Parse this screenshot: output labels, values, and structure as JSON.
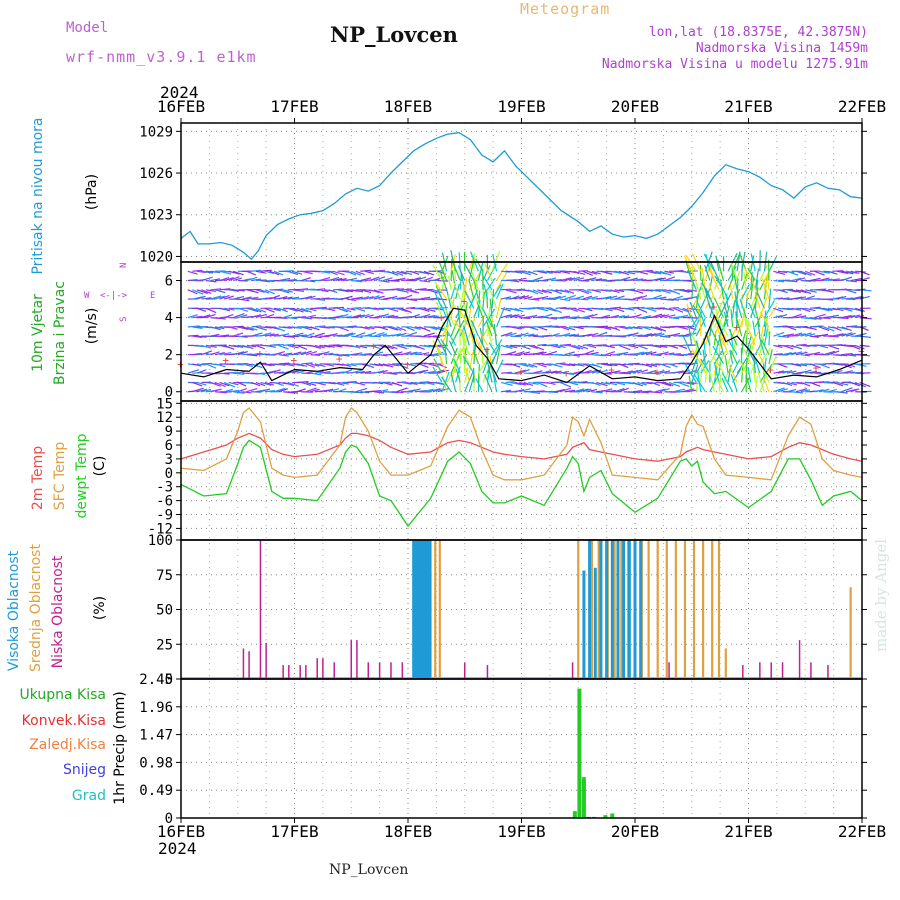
{
  "header": {
    "model_label": "Model",
    "model_version": "wrf-nmm_v3.9.1 e1km",
    "station": "NP_Lovcen",
    "product": "Meteogram",
    "coords": "lon,lat (18.8375E, 42.3875N)",
    "elevation": "Nadmorska Visina 1459m",
    "model_elevation": "Nadmorska Visina u modelu 1275.91m"
  },
  "footer": {
    "station": "NP_Lovcen",
    "credit": "made by Angel"
  },
  "colors": {
    "pressure": "#1e9bd7",
    "wind_speed_label": "#22aa22",
    "wind_unit": "#b040d0",
    "t2m": "#e85050",
    "sfc": "#e0a040",
    "dew": "#22cc22",
    "cloud_high": "#1e9bd7",
    "cloud_mid": "#e0a040",
    "cloud_low": "#c02090",
    "precip_total": "#22cc22",
    "precip_conv": "#e83030",
    "precip_frz": "#f08040",
    "snow": "#4040e0",
    "hail": "#20c0c0",
    "wind_line": "#000000",
    "wind_gust_marker": "#e84040"
  },
  "time_axis": {
    "year": "2024",
    "labels": [
      "16FEB",
      "17FEB",
      "18FEB",
      "19FEB",
      "20FEB",
      "21FEB",
      "22FEB"
    ],
    "days_span": 6
  },
  "panels": {
    "pressure": {
      "label": "Pritisak na nivou mora",
      "unit": "(hPa)"
    },
    "wind": {
      "label1": "10m Vjetar",
      "label2": "Brzina i Pravac",
      "unit": "(m/s)",
      "compass_n": "N",
      "compass_w": "W",
      "compass_e": "E",
      "compass_s": "S",
      "compass_arrows": "<-|->"
    },
    "temp": {
      "label1": "2m Temp",
      "label2": "SFC Temp",
      "label3": "dewpt Temp",
      "unit": "(C)"
    },
    "cloud": {
      "label1": "Visoka Oblacnost",
      "label2": "Srednja Oblacnost",
      "label3": "Niska Oblacnost",
      "unit": "(%)"
    },
    "precip": {
      "unit": "1hr Precip (mm)",
      "legend": [
        "Ukupna Kisa",
        "Konvek.Kisa",
        "Zaledj.Kisa",
        "Snijeg",
        "Grad"
      ]
    }
  },
  "chart_data": [
    {
      "type": "line",
      "title": "Pritisak na nivou mora",
      "ylabel": "(hPa)",
      "ylim": [
        1019.6,
        1029.6
      ],
      "yticks": [
        1020,
        1023,
        1026,
        1029
      ],
      "grid": true,
      "series": [
        {
          "x": [
            0,
            0.08,
            0.15,
            0.25,
            0.35,
            0.45,
            0.55,
            0.62,
            0.68,
            0.75,
            0.85,
            0.95,
            1.05,
            1.15,
            1.25,
            1.35,
            1.45,
            1.55,
            1.65,
            1.75,
            1.85,
            1.95,
            2.05,
            2.15,
            2.25,
            2.35,
            2.45,
            2.55,
            2.65,
            2.75,
            2.85,
            2.95,
            3.05,
            3.2,
            3.35,
            3.5,
            3.6,
            3.7,
            3.8,
            3.9,
            4.0,
            4.1,
            4.2,
            4.3,
            4.4,
            4.5,
            4.6,
            4.7,
            4.8,
            4.9,
            5.0,
            5.1,
            5.2,
            5.3,
            5.4,
            5.5,
            5.6,
            5.7,
            5.8,
            5.9,
            6.0
          ],
          "y": [
            1021.3,
            1021.8,
            1020.9,
            1020.9,
            1021.0,
            1020.8,
            1020.3,
            1019.8,
            1020.4,
            1021.5,
            1022.3,
            1022.7,
            1023.0,
            1023.1,
            1023.3,
            1023.8,
            1024.5,
            1024.9,
            1024.7,
            1025.1,
            1026.0,
            1026.8,
            1027.6,
            1028.1,
            1028.5,
            1028.8,
            1028.9,
            1028.4,
            1027.3,
            1026.8,
            1027.6,
            1026.5,
            1025.7,
            1024.5,
            1023.3,
            1022.5,
            1021.8,
            1022.2,
            1021.6,
            1021.4,
            1021.5,
            1021.3,
            1021.6,
            1022.2,
            1022.8,
            1023.6,
            1024.6,
            1025.8,
            1026.6,
            1026.3,
            1026.1,
            1025.7,
            1025.1,
            1024.8,
            1024.2,
            1025.0,
            1025.3,
            1024.9,
            1024.8,
            1024.3,
            1024.2
          ]
        }
      ]
    },
    {
      "type": "line",
      "title": "10m Vjetar Brzina i Pravac",
      "ylabel": "(m/s)",
      "ylim": [
        -0.5,
        7.0
      ],
      "yticks": [
        0,
        2,
        4,
        6
      ],
      "grid": true,
      "series": [
        {
          "name": "Brzina",
          "x": [
            0,
            0.2,
            0.4,
            0.6,
            0.7,
            0.8,
            1.0,
            1.2,
            1.4,
            1.6,
            1.7,
            1.8,
            2.0,
            2.2,
            2.3,
            2.4,
            2.5,
            2.6,
            2.7,
            2.8,
            3.0,
            3.2,
            3.4,
            3.6,
            3.8,
            4.0,
            4.2,
            4.4,
            4.5,
            4.6,
            4.7,
            4.8,
            4.9,
            5.0,
            5.2,
            5.4,
            5.6,
            5.8,
            6.0
          ],
          "y": [
            1.0,
            0.8,
            1.2,
            1.1,
            1.6,
            0.6,
            1.2,
            1.1,
            1.3,
            1.2,
            2.0,
            2.5,
            1.0,
            2.0,
            3.5,
            4.5,
            4.4,
            2.5,
            1.8,
            0.7,
            0.6,
            0.9,
            0.5,
            1.4,
            0.7,
            0.8,
            0.6,
            0.7,
            1.6,
            2.6,
            4.1,
            2.7,
            3.0,
            2.3,
            0.7,
            0.9,
            0.8,
            1.2,
            1.7
          ]
        }
      ],
      "barbs": {
        "levels": [
          0,
          0.5,
          1.0,
          1.5,
          2.0,
          2.5,
          3.0,
          3.5,
          4.0,
          4.5,
          5.0,
          5.5,
          6.0,
          6.5
        ],
        "note": "Barb rows drawn across all levels; colors scale with speed."
      }
    },
    {
      "type": "line",
      "title": "2m Temp / SFC Temp / dewpt Temp",
      "ylabel": "(C)",
      "ylim": [
        -14.5,
        15.5
      ],
      "yticks": [
        -12,
        -9,
        -6,
        -3,
        0,
        3,
        6,
        9,
        12,
        15
      ],
      "grid": true,
      "x": [
        0,
        0.2,
        0.4,
        0.5,
        0.55,
        0.6,
        0.7,
        0.8,
        0.9,
        1.0,
        1.2,
        1.4,
        1.45,
        1.5,
        1.55,
        1.65,
        1.75,
        1.85,
        2.0,
        2.2,
        2.35,
        2.45,
        2.55,
        2.65,
        2.75,
        2.85,
        3.0,
        3.2,
        3.4,
        3.45,
        3.5,
        3.55,
        3.6,
        3.7,
        3.8,
        4.0,
        4.2,
        4.4,
        4.45,
        4.5,
        4.55,
        4.6,
        4.7,
        4.8,
        5.0,
        5.2,
        5.35,
        5.45,
        5.55,
        5.65,
        5.75,
        5.9,
        6.0
      ],
      "series": [
        {
          "name": "2m Temp",
          "values": [
            3.0,
            4.5,
            6.0,
            7.5,
            8.0,
            8.5,
            7.5,
            5.0,
            4.0,
            3.5,
            4.0,
            6.0,
            7.5,
            8.5,
            8.5,
            8.0,
            7.0,
            5.5,
            4.0,
            4.5,
            6.5,
            7.0,
            6.5,
            5.5,
            4.5,
            4.0,
            3.5,
            3.0,
            4.0,
            5.5,
            6.0,
            6.5,
            5.0,
            4.5,
            4.0,
            3.0,
            2.5,
            3.5,
            4.5,
            5.0,
            5.5,
            5.0,
            4.5,
            4.0,
            3.0,
            3.5,
            5.5,
            6.5,
            6.0,
            5.0,
            4.0,
            3.0,
            2.5
          ]
        },
        {
          "name": "SFC Temp",
          "values": [
            1.0,
            0.5,
            3.0,
            9.0,
            13.0,
            14.0,
            11.0,
            1.0,
            -0.5,
            -1.0,
            -0.5,
            6.0,
            12.0,
            14.0,
            13.0,
            9.0,
            2.5,
            -0.5,
            -0.5,
            1.5,
            10.0,
            13.5,
            12.0,
            5.0,
            -0.5,
            -1.5,
            -1.5,
            -0.5,
            6.0,
            12.0,
            11.0,
            8.0,
            11.5,
            6.5,
            -0.5,
            -1.0,
            -1.5,
            4.0,
            10.0,
            12.5,
            10.5,
            10.0,
            3.0,
            -0.5,
            -1.0,
            -1.5,
            8.0,
            12.0,
            10.5,
            3.0,
            0.5,
            -0.5,
            -1.0
          ]
        },
        {
          "name": "dewpt Temp",
          "values": [
            -2.5,
            -5.0,
            -4.5,
            2.0,
            5.5,
            7.0,
            5.5,
            -4.0,
            -5.5,
            -5.5,
            -6.0,
            1.0,
            4.5,
            6.0,
            5.5,
            2.0,
            -5.0,
            -6.0,
            -11.5,
            -5.5,
            2.5,
            4.5,
            2.0,
            -4.0,
            -6.5,
            -6.5,
            -5.0,
            -7.0,
            1.0,
            3.5,
            2.0,
            -4.0,
            -1.0,
            0.5,
            -4.5,
            -8.5,
            -5.5,
            2.5,
            3.0,
            1.5,
            2.5,
            -2.0,
            -4.5,
            -4.0,
            -7.5,
            -4.0,
            3.0,
            3.0,
            -1.5,
            -7.0,
            -5.0,
            -4.0,
            -6.0
          ]
        }
      ]
    },
    {
      "type": "bar",
      "title": "Visoka / Srednja / Niska Oblacnost",
      "ylabel": "(%)",
      "ylim": [
        0,
        100
      ],
      "yticks": [
        0,
        25,
        50,
        75,
        100
      ],
      "grid": true,
      "series": [
        {
          "name": "Niska Oblacnost",
          "x": [
            0.55,
            0.6,
            0.7,
            0.75,
            0.9,
            0.95,
            1.05,
            1.1,
            1.2,
            1.25,
            1.35,
            1.5,
            1.55,
            1.65,
            1.75,
            1.85,
            1.95,
            2.5,
            2.7,
            3.45,
            3.55,
            3.65,
            4.05,
            4.3,
            4.95,
            5.1,
            5.2,
            5.3,
            5.45,
            5.55,
            5.7
          ],
          "values": [
            22,
            20,
            100,
            26,
            10,
            10,
            10,
            10,
            15,
            15,
            12,
            28,
            28,
            12,
            12,
            12,
            12,
            12,
            10,
            12,
            12,
            12,
            10,
            12,
            10,
            12,
            12,
            12,
            28,
            12,
            10
          ]
        },
        {
          "name": "Visoka Oblacnost",
          "x": [
            2.05,
            2.07,
            2.09,
            2.11,
            2.13,
            2.15,
            2.17,
            2.19,
            3.55,
            3.6,
            3.65,
            3.7,
            3.75,
            3.8,
            3.85,
            3.9,
            3.95,
            4.0,
            4.05
          ],
          "values": [
            100,
            100,
            100,
            100,
            100,
            100,
            100,
            100,
            78,
            100,
            80,
            100,
            100,
            100,
            100,
            100,
            100,
            100,
            100
          ]
        },
        {
          "name": "Srednja Oblacnost",
          "x": [
            2.1,
            2.12,
            2.16,
            2.2,
            2.24,
            2.28,
            3.5,
            3.62,
            3.68,
            3.76,
            3.82,
            3.88,
            3.94,
            4.0,
            4.06,
            4.12,
            4.2,
            4.28,
            4.36,
            4.44,
            4.52,
            4.6,
            4.68,
            4.74,
            4.8,
            5.9
          ],
          "values": [
            100,
            100,
            100,
            100,
            100,
            100,
            100,
            100,
            100,
            100,
            100,
            100,
            100,
            100,
            100,
            100,
            100,
            100,
            100,
            100,
            100,
            100,
            100,
            100,
            22,
            66
          ]
        }
      ]
    },
    {
      "type": "bar",
      "title": "1hr Precip",
      "ylabel": "1hr Precip (mm)",
      "ylim": [
        0,
        2.45
      ],
      "yticks": [
        0,
        0.49,
        0.98,
        1.47,
        1.96,
        2.45
      ],
      "grid": true,
      "series": [
        {
          "name": "Ukupna Kisa",
          "x": [
            3.47,
            3.51,
            3.55,
            3.59,
            3.64,
            3.74,
            3.8
          ],
          "values": [
            0.12,
            2.28,
            0.72,
            0.02,
            0.02,
            0.05,
            0.08
          ]
        }
      ]
    }
  ]
}
